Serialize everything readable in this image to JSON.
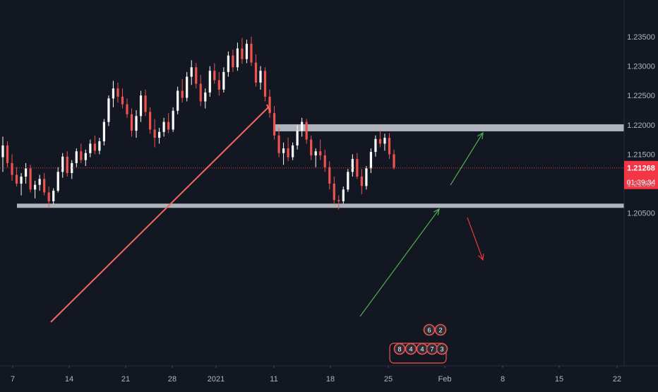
{
  "chart_data": {
    "type": "candlestick",
    "title": "",
    "colors": {
      "background": "#131722",
      "up": "#ffffff",
      "down": "#ef5350",
      "zone": "#d1d4dc",
      "trendline": "#f06a60",
      "arrow_up": "#4caf50",
      "arrow_down": "#e53935",
      "price_line": "#e53935",
      "axis_text": "#b2b5be"
    },
    "ylim": [
      1.2025,
      1.2375
    ],
    "y_ticks": [
      "1.23500",
      "1.23000",
      "1.22500",
      "1.22000",
      "1.21500",
      "1.21000",
      "1.20500"
    ],
    "y_tick_values": [
      1.235,
      1.23,
      1.225,
      1.22,
      1.215,
      1.21,
      1.205
    ],
    "x_ticks": [
      "7",
      "14",
      "21",
      "28",
      "2021",
      "11",
      "18",
      "25",
      "Feb",
      "8",
      "15",
      "22"
    ],
    "current_price": {
      "value": 1.21268,
      "label": "1.21268",
      "countdown": "01:39:34"
    },
    "zones": [
      {
        "name": "resistance-zone",
        "from": 1.2189,
        "to": 1.2201
      },
      {
        "name": "support-zone",
        "from": 1.2061,
        "to": 1.2066
      }
    ],
    "series": [
      {
        "name": "",
        "points": [
          [
            1.2145,
            1.218,
            1.212,
            1.2165
          ],
          [
            1.2165,
            1.2172,
            1.2128,
            1.2135
          ],
          [
            1.2135,
            1.215,
            1.2105,
            1.2115
          ],
          [
            1.2115,
            1.2128,
            1.2095,
            1.21
          ],
          [
            1.21,
            1.2118,
            1.208,
            1.2112
          ],
          [
            1.2112,
            1.2135,
            1.21,
            1.2126
          ],
          [
            1.2126,
            1.2132,
            1.2085,
            1.209
          ],
          [
            1.209,
            1.2105,
            1.2075,
            1.2098
          ],
          [
            1.2098,
            1.2115,
            1.2088,
            1.2108
          ],
          [
            1.2108,
            1.2118,
            1.208,
            1.2085
          ],
          [
            1.2085,
            1.2095,
            1.206,
            1.207
          ],
          [
            1.207,
            1.2092,
            1.2065,
            1.2088
          ],
          [
            1.2088,
            1.2128,
            1.2085,
            1.212
          ],
          [
            1.212,
            1.2152,
            1.211,
            1.2146
          ],
          [
            1.2146,
            1.2155,
            1.2112,
            1.2118
          ],
          [
            1.2118,
            1.214,
            1.2108,
            1.2135
          ],
          [
            1.2135,
            1.216,
            1.2128,
            1.2155
          ],
          [
            1.2155,
            1.2168,
            1.2135,
            1.214
          ],
          [
            1.214,
            1.2158,
            1.213,
            1.2152
          ],
          [
            1.2152,
            1.2175,
            1.2145,
            1.2168
          ],
          [
            1.2168,
            1.2182,
            1.215,
            1.2156
          ],
          [
            1.2156,
            1.2178,
            1.215,
            1.2172
          ],
          [
            1.2172,
            1.221,
            1.2165,
            1.2205
          ],
          [
            1.2205,
            1.225,
            1.2198,
            1.2245
          ],
          [
            1.2245,
            1.2275,
            1.223,
            1.2262
          ],
          [
            1.2262,
            1.2272,
            1.2238,
            1.2248
          ],
          [
            1.2248,
            1.2262,
            1.2228,
            1.2235
          ],
          [
            1.2235,
            1.2245,
            1.2212,
            1.2218
          ],
          [
            1.2218,
            1.2228,
            1.218,
            1.219
          ],
          [
            1.219,
            1.2225,
            1.2178,
            1.2215
          ],
          [
            1.2215,
            1.2258,
            1.2205,
            1.225
          ],
          [
            1.225,
            1.226,
            1.2215,
            1.2222
          ],
          [
            1.2222,
            1.223,
            1.2185,
            1.2192
          ],
          [
            1.2192,
            1.221,
            1.2162,
            1.2178
          ],
          [
            1.2178,
            1.2195,
            1.2168,
            1.2188
          ],
          [
            1.2188,
            1.2212,
            1.218,
            1.2205
          ],
          [
            1.2205,
            1.222,
            1.2186,
            1.2192
          ],
          [
            1.2192,
            1.223,
            1.2188,
            1.2224
          ],
          [
            1.2224,
            1.2265,
            1.2218,
            1.2258
          ],
          [
            1.2258,
            1.2278,
            1.2238,
            1.2246
          ],
          [
            1.2246,
            1.229,
            1.224,
            1.2282
          ],
          [
            1.2282,
            1.231,
            1.2268,
            1.2298
          ],
          [
            1.2298,
            1.2305,
            1.2262,
            1.227
          ],
          [
            1.227,
            1.2285,
            1.2232,
            1.224
          ],
          [
            1.224,
            1.2262,
            1.2228,
            1.2255
          ],
          [
            1.2255,
            1.23,
            1.2248,
            1.2292
          ],
          [
            1.2292,
            1.2305,
            1.227,
            1.2276
          ],
          [
            1.2276,
            1.229,
            1.225,
            1.226
          ],
          [
            1.226,
            1.2298,
            1.2255,
            1.229
          ],
          [
            1.229,
            1.2325,
            1.2282,
            1.2318
          ],
          [
            1.2318,
            1.2328,
            1.229,
            1.2298
          ],
          [
            1.2298,
            1.234,
            1.2292,
            1.233
          ],
          [
            1.233,
            1.2348,
            1.2304,
            1.2312
          ],
          [
            1.2312,
            1.2345,
            1.2305,
            1.2338
          ],
          [
            1.2338,
            1.235,
            1.23,
            1.2306
          ],
          [
            1.2306,
            1.232,
            1.2265,
            1.2272
          ],
          [
            1.2272,
            1.23,
            1.226,
            1.2292
          ],
          [
            1.2292,
            1.2298,
            1.224,
            1.2248
          ],
          [
            1.2248,
            1.226,
            1.2212,
            1.222
          ],
          [
            1.222,
            1.2232,
            1.2175,
            1.2182
          ],
          [
            1.2182,
            1.2195,
            1.2145,
            1.2152
          ],
          [
            1.2152,
            1.217,
            1.2132,
            1.216
          ],
          [
            1.216,
            1.2178,
            1.2138,
            1.2145
          ],
          [
            1.2145,
            1.217,
            1.214,
            1.2165
          ],
          [
            1.2165,
            1.22,
            1.2158,
            1.219
          ],
          [
            1.219,
            1.2212,
            1.218,
            1.2205
          ],
          [
            1.2205,
            1.221,
            1.2168,
            1.2175
          ],
          [
            1.2175,
            1.2182,
            1.214,
            1.2148
          ],
          [
            1.2148,
            1.216,
            1.2128,
            1.2155
          ],
          [
            1.2155,
            1.2175,
            1.214,
            1.2148
          ],
          [
            1.2148,
            1.2158,
            1.212,
            1.2128
          ],
          [
            1.2128,
            1.2138,
            1.209,
            1.21
          ],
          [
            1.21,
            1.2112,
            1.2065,
            1.2072
          ],
          [
            1.2072,
            1.208,
            1.2056,
            1.207
          ],
          [
            1.207,
            1.2095,
            1.2066,
            1.209
          ],
          [
            1.209,
            1.2125,
            1.2086,
            1.212
          ],
          [
            1.212,
            1.215,
            1.2112,
            1.2142
          ],
          [
            1.2142,
            1.2152,
            1.2108,
            1.2112
          ],
          [
            1.2112,
            1.2125,
            1.2082,
            1.2096
          ],
          [
            1.2096,
            1.213,
            1.209,
            1.2126
          ],
          [
            1.2126,
            1.216,
            1.2118,
            1.2154
          ],
          [
            1.2154,
            1.2182,
            1.2146,
            1.2176
          ],
          [
            1.2176,
            1.219,
            1.2162,
            1.2168
          ],
          [
            1.2168,
            1.2185,
            1.2156,
            1.2178
          ],
          [
            1.2178,
            1.2186,
            1.2142,
            1.215
          ],
          [
            1.215,
            1.2158,
            1.2124,
            1.2127
          ]
        ]
      }
    ],
    "event_badges": {
      "top_row": [
        "6",
        "2"
      ],
      "bottom_row": [
        "8",
        "4",
        "4",
        "7",
        "3"
      ]
    }
  }
}
